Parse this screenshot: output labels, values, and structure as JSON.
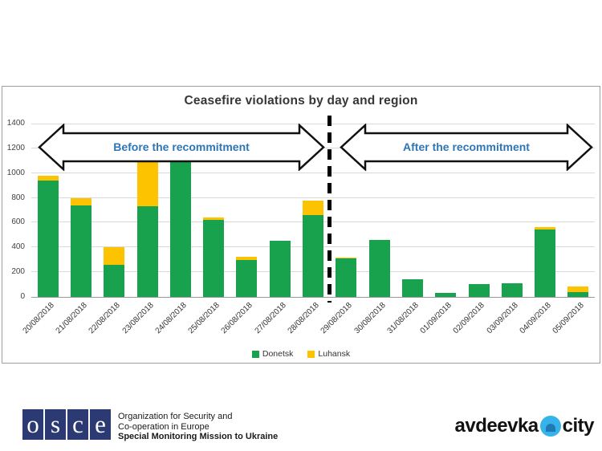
{
  "chart": {
    "title": "Ceasefire violations by day and region",
    "before_label": "Before the recommitment",
    "after_label": "After the recommitment"
  },
  "chart_data": {
    "type": "bar",
    "stacked": true,
    "title": "Ceasefire violations by day and region",
    "categories": [
      "20/08/2018",
      "21/08/2018",
      "22/08/2018",
      "23/08/2018",
      "24/08/2018",
      "25/08/2018",
      "26/08/2018",
      "27/08/2018",
      "28/08/2018",
      "29/08/2018",
      "30/08/2018",
      "31/08/2018",
      "01/09/2018",
      "02/09/2018",
      "03/09/2018",
      "04/09/2018",
      "05/09/2018"
    ],
    "series": [
      {
        "name": "Donetsk",
        "color": "#18a24e",
        "values": [
          940,
          740,
          260,
          730,
          1120,
          620,
          300,
          455,
          660,
          310,
          460,
          140,
          35,
          105,
          110,
          545,
          40
        ]
      },
      {
        "name": "Luhansk",
        "color": "#fdc300",
        "values": [
          40,
          60,
          140,
          530,
          180,
          25,
          25,
          0,
          120,
          10,
          0,
          0,
          0,
          0,
          0,
          20,
          45
        ]
      }
    ],
    "ylim": [
      0,
      1400
    ],
    "yticks": [
      0,
      200,
      400,
      600,
      800,
      1000,
      1200,
      1400
    ],
    "grid": true,
    "legend_position": "bottom-center",
    "divider": {
      "after_category": "28/08/2018",
      "style": "thick-dashed-vertical-black"
    }
  },
  "legend": {
    "items": [
      {
        "label": "Donetsk",
        "color": "#18a24e"
      },
      {
        "label": "Luhansk",
        "color": "#fdc300"
      }
    ]
  },
  "footer": {
    "osce": {
      "letters": "osce",
      "org_line1": "Organization for Security and",
      "org_line2": "Co-operation in Europe",
      "mission_line": "Special Monitoring Mission to Ukraine",
      "square_color": "#2b3a72"
    },
    "brand": {
      "name_left": "avdeevka",
      "name_right": "city",
      "dot_color": "#36b3e8"
    }
  },
  "colors": {
    "annotation_text": "#2e75b6",
    "grid_line": "#d9d9d9",
    "axis_text": "#3f3f3f",
    "chart_border": "#9e9e9e"
  }
}
